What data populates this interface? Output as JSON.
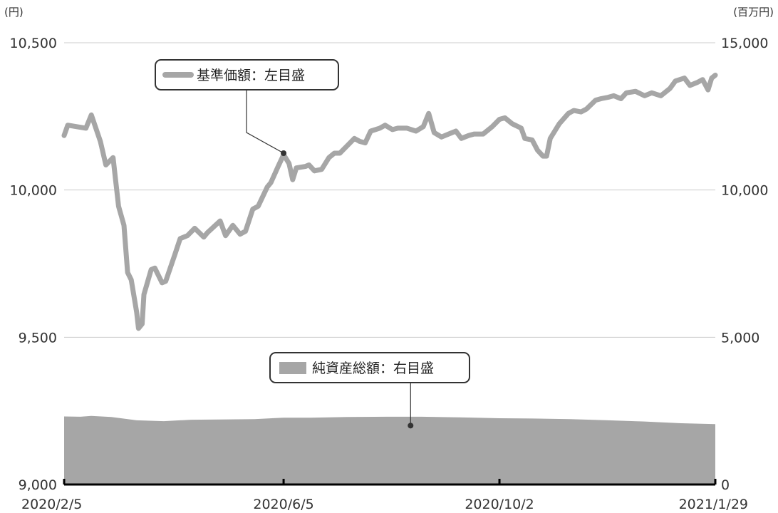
{
  "chart_data": {
    "type": "area+line",
    "left_axis": {
      "unit": "(円)",
      "ylim": [
        9000,
        10500
      ],
      "ticks": [
        "9,000",
        "9,500",
        "10,000",
        "10,500"
      ]
    },
    "right_axis": {
      "unit": "(百万円)",
      "ylim": [
        0,
        15000
      ],
      "ticks": [
        "0",
        "5,000",
        "10,000",
        "15,000"
      ]
    },
    "x_ticks": [
      "2020/2/5",
      "2020/6/5",
      "2020/10/2",
      "2021/1/29"
    ],
    "x_range": [
      "2020-02-05",
      "2021-01-29"
    ],
    "grid": true,
    "series": [
      {
        "name": "基準価額：左目盛",
        "kind": "line",
        "axis": "left",
        "color": "#a6a6a6",
        "points": [
          [
            "2020-02-05",
            10185
          ],
          [
            "2020-02-07",
            10220
          ],
          [
            "2020-02-12",
            10215
          ],
          [
            "2020-02-17",
            10210
          ],
          [
            "2020-02-20",
            10255
          ],
          [
            "2020-02-25",
            10165
          ],
          [
            "2020-02-28",
            10085
          ],
          [
            "2020-03-03",
            10110
          ],
          [
            "2020-03-06",
            9945
          ],
          [
            "2020-03-09",
            9880
          ],
          [
            "2020-03-11",
            9720
          ],
          [
            "2020-03-13",
            9695
          ],
          [
            "2020-03-16",
            9585
          ],
          [
            "2020-03-17",
            9530
          ],
          [
            "2020-03-19",
            9545
          ],
          [
            "2020-03-20",
            9645
          ],
          [
            "2020-03-24",
            9730
          ],
          [
            "2020-03-26",
            9735
          ],
          [
            "2020-03-30",
            9685
          ],
          [
            "2020-04-01",
            9690
          ],
          [
            "2020-04-06",
            9780
          ],
          [
            "2020-04-09",
            9835
          ],
          [
            "2020-04-13",
            9845
          ],
          [
            "2020-04-17",
            9870
          ],
          [
            "2020-04-22",
            9840
          ],
          [
            "2020-04-24",
            9855
          ],
          [
            "2020-05-01",
            9895
          ],
          [
            "2020-05-04",
            9845
          ],
          [
            "2020-05-08",
            9880
          ],
          [
            "2020-05-12",
            9850
          ],
          [
            "2020-05-15",
            9860
          ],
          [
            "2020-05-19",
            9935
          ],
          [
            "2020-05-22",
            9945
          ],
          [
            "2020-05-27",
            10010
          ],
          [
            "2020-05-29",
            10025
          ],
          [
            "2020-06-02",
            10080
          ],
          [
            "2020-06-05",
            10120
          ],
          [
            "2020-06-08",
            10090
          ],
          [
            "2020-06-10",
            10035
          ],
          [
            "2020-06-12",
            10075
          ],
          [
            "2020-06-17",
            10080
          ],
          [
            "2020-06-19",
            10085
          ],
          [
            "2020-06-22",
            10065
          ],
          [
            "2020-06-26",
            10070
          ],
          [
            "2020-06-30",
            10110
          ],
          [
            "2020-07-03",
            10125
          ],
          [
            "2020-07-06",
            10125
          ],
          [
            "2020-07-10",
            10150
          ],
          [
            "2020-07-14",
            10175
          ],
          [
            "2020-07-17",
            10165
          ],
          [
            "2020-07-20",
            10160
          ],
          [
            "2020-07-23",
            10200
          ],
          [
            "2020-07-28",
            10210
          ],
          [
            "2020-07-31",
            10220
          ],
          [
            "2020-08-04",
            10205
          ],
          [
            "2020-08-07",
            10210
          ],
          [
            "2020-08-12",
            10210
          ],
          [
            "2020-08-17",
            10200
          ],
          [
            "2020-08-21",
            10215
          ],
          [
            "2020-08-24",
            10260
          ],
          [
            "2020-08-27",
            10195
          ],
          [
            "2020-08-31",
            10180
          ],
          [
            "2020-09-04",
            10190
          ],
          [
            "2020-09-08",
            10200
          ],
          [
            "2020-09-11",
            10175
          ],
          [
            "2020-09-15",
            10185
          ],
          [
            "2020-09-18",
            10190
          ],
          [
            "2020-09-23",
            10190
          ],
          [
            "2020-09-28",
            10215
          ],
          [
            "2020-10-02",
            10240
          ],
          [
            "2020-10-05",
            10245
          ],
          [
            "2020-10-09",
            10225
          ],
          [
            "2020-10-14",
            10210
          ],
          [
            "2020-10-16",
            10175
          ],
          [
            "2020-10-20",
            10170
          ],
          [
            "2020-10-23",
            10135
          ],
          [
            "2020-10-26",
            10115
          ],
          [
            "2020-10-28",
            10115
          ],
          [
            "2020-10-30",
            10175
          ],
          [
            "2020-11-04",
            10225
          ],
          [
            "2020-11-09",
            10260
          ],
          [
            "2020-11-12",
            10270
          ],
          [
            "2020-11-16",
            10265
          ],
          [
            "2020-11-19",
            10275
          ],
          [
            "2020-11-24",
            10305
          ],
          [
            "2020-11-27",
            10310
          ],
          [
            "2020-12-01",
            10315
          ],
          [
            "2020-12-04",
            10320
          ],
          [
            "2020-12-08",
            10310
          ],
          [
            "2020-12-11",
            10330
          ],
          [
            "2020-12-16",
            10335
          ],
          [
            "2020-12-21",
            10320
          ],
          [
            "2020-12-25",
            10330
          ],
          [
            "2020-12-30",
            10320
          ],
          [
            "2021-01-04",
            10345
          ],
          [
            "2021-01-07",
            10370
          ],
          [
            "2021-01-12",
            10380
          ],
          [
            "2021-01-15",
            10355
          ],
          [
            "2021-01-19",
            10365
          ],
          [
            "2021-01-22",
            10375
          ],
          [
            "2021-01-25",
            10340
          ],
          [
            "2021-01-27",
            10380
          ],
          [
            "2021-01-29",
            10390
          ]
        ]
      },
      {
        "name": "純資産総額：右目盛",
        "kind": "area",
        "axis": "right",
        "color": "#a6a6a6",
        "points": [
          [
            "2020-02-05",
            2310
          ],
          [
            "2020-02-14",
            2300
          ],
          [
            "2020-02-20",
            2330
          ],
          [
            "2020-03-02",
            2290
          ],
          [
            "2020-03-16",
            2180
          ],
          [
            "2020-03-31",
            2150
          ],
          [
            "2020-04-15",
            2200
          ],
          [
            "2020-05-01",
            2210
          ],
          [
            "2020-05-20",
            2220
          ],
          [
            "2020-06-05",
            2270
          ],
          [
            "2020-06-20",
            2270
          ],
          [
            "2020-07-10",
            2290
          ],
          [
            "2020-08-01",
            2300
          ],
          [
            "2020-08-20",
            2300
          ],
          [
            "2020-09-10",
            2280
          ],
          [
            "2020-10-02",
            2250
          ],
          [
            "2020-10-20",
            2240
          ],
          [
            "2020-11-10",
            2220
          ],
          [
            "2020-12-01",
            2180
          ],
          [
            "2020-12-20",
            2140
          ],
          [
            "2021-01-10",
            2080
          ],
          [
            "2021-01-29",
            2050
          ]
        ]
      }
    ],
    "annotations": [
      {
        "text": "基準価額：左目盛",
        "points_to": [
          "2020-06-05",
          10125
        ]
      },
      {
        "text": "純資産総額：右目盛",
        "points_to": [
          "2020-08-14",
          2000
        ]
      }
    ]
  }
}
